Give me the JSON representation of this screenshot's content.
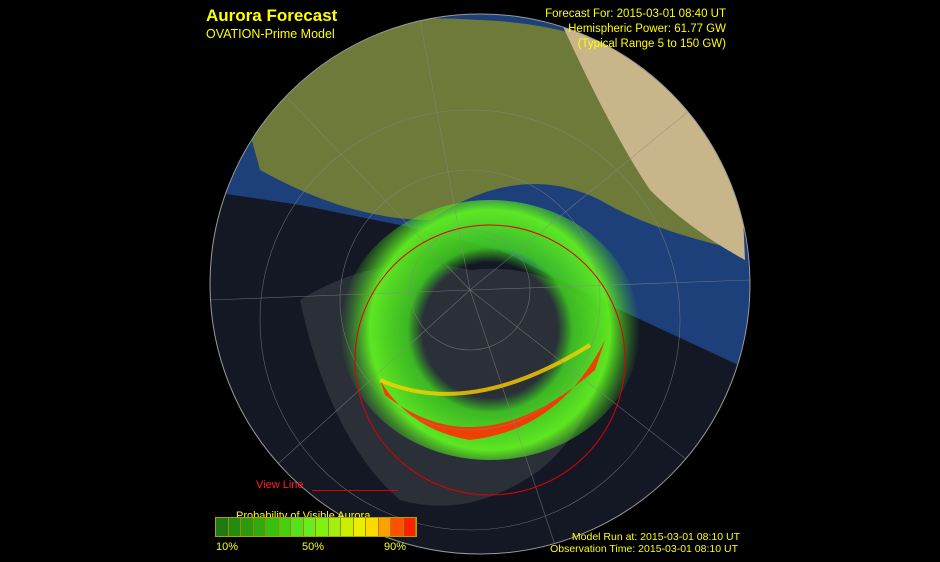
{
  "header": {
    "title": "Aurora Forecast",
    "subtitle": "OVATION-Prime Model",
    "forecast_for": "Forecast For: 2015-03-01  08:40 UT",
    "hemispheric_power": "Hemispheric Power: 61.77 GW",
    "typical_range": "(Typical Range 5 to 150 GW)"
  },
  "legend": {
    "view_line": "View Line",
    "title": "Probability of Visible Aurora",
    "labels": [
      "10%",
      "50%",
      "90%"
    ],
    "colors": [
      "#1e7a10",
      "#228a10",
      "#2a9a10",
      "#30aa10",
      "#38c010",
      "#44d010",
      "#55e020",
      "#66ee20",
      "#80f010",
      "#a0f010",
      "#c8f000",
      "#e8f000",
      "#ffd800",
      "#ffa000",
      "#ff5000",
      "#ff2000"
    ]
  },
  "footer": {
    "model_run": "Model Run at: 2015-03-01 08:10 UT",
    "observation_time": "Observation Time: 2015-03-01 08:10 UT"
  },
  "colors": {
    "text": "#ffff00",
    "view_line": "#ff0000",
    "ocean_day": "#1d3f7a",
    "night": "#141824"
  }
}
